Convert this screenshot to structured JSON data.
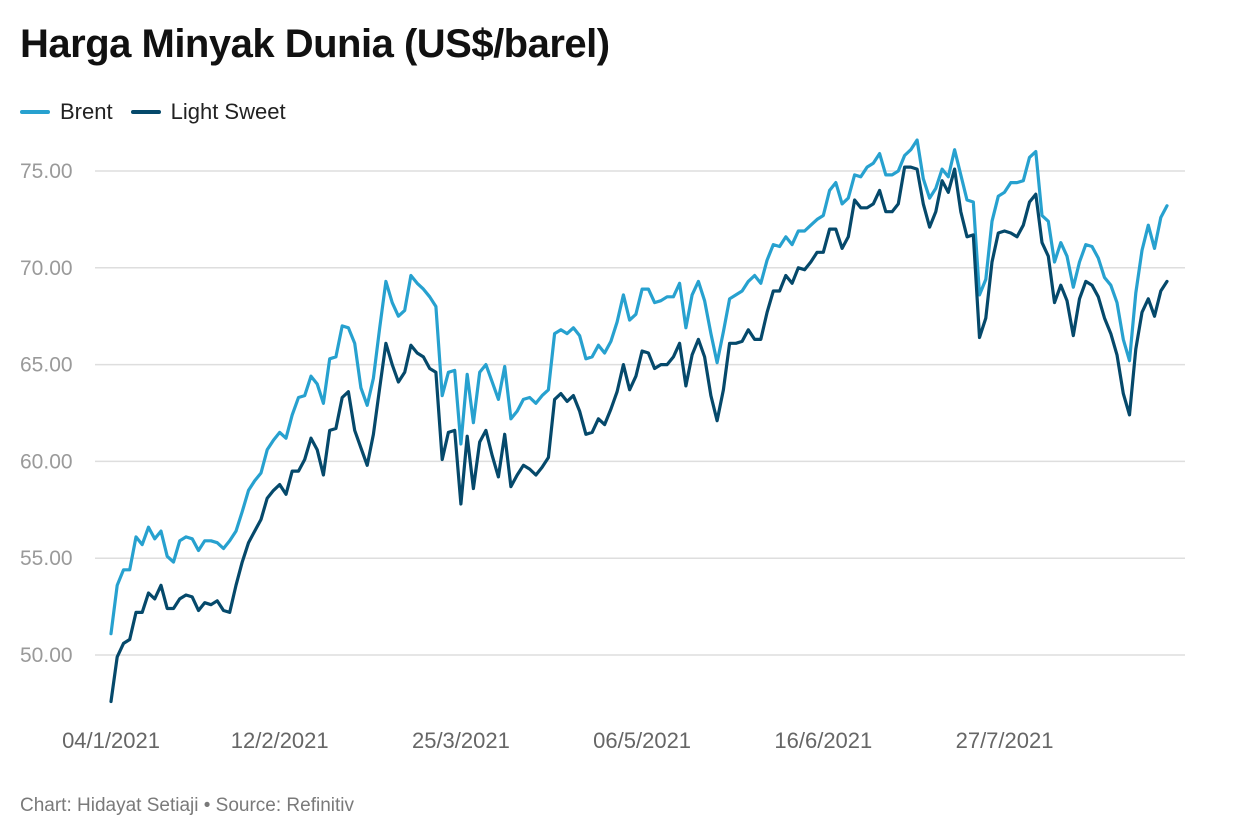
{
  "title": "Harga Minyak Dunia (US$/barel)",
  "footer": "Chart: Hidayat Setiaji • Source: Refinitiv",
  "colors": {
    "brent": "#27a1cf",
    "light_sweet": "#05496b",
    "grid": "#dedede",
    "tick_text": "#9a9a9a",
    "axis_text": "#666666"
  },
  "chart_data": {
    "type": "line",
    "title": "Harga Minyak Dunia (US$/barel)",
    "xlabel": "",
    "ylabel": "",
    "ylim": [
      47,
      78
    ],
    "grid": true,
    "legend": "top-left",
    "y_ticks": [
      "50.00",
      "55.00",
      "60.00",
      "65.00",
      "70.00",
      "75.00"
    ],
    "y_tick_values": [
      50,
      55,
      60,
      65,
      70,
      75
    ],
    "x_ticks": [
      "04/1/2021",
      "12/2/2021",
      "25/3/2021",
      "06/5/2021",
      "16/6/2021",
      "27/7/2021"
    ],
    "x_tick_index": [
      0,
      27,
      56,
      85,
      114,
      143
    ],
    "series": [
      {
        "name": "Brent",
        "color": "#27a1cf",
        "values": [
          51.1,
          53.6,
          54.4,
          54.4,
          56.1,
          55.7,
          56.6,
          56.0,
          56.4,
          55.1,
          54.8,
          55.9,
          56.1,
          56.0,
          55.4,
          55.9,
          55.9,
          55.8,
          55.5,
          55.9,
          56.4,
          57.4,
          58.5,
          59.0,
          59.4,
          60.6,
          61.1,
          61.5,
          61.2,
          62.4,
          63.3,
          63.4,
          64.4,
          64.0,
          63.0,
          65.3,
          65.4,
          67.0,
          66.9,
          66.1,
          63.8,
          62.9,
          64.3,
          66.9,
          69.3,
          68.2,
          67.5,
          67.8,
          69.6,
          69.2,
          68.9,
          68.5,
          68.0,
          63.4,
          64.6,
          64.7,
          60.9,
          64.5,
          62.0,
          64.6,
          65.0,
          64.1,
          63.2,
          64.9,
          62.2,
          62.6,
          63.2,
          63.3,
          63.0,
          63.4,
          63.7,
          66.6,
          66.8,
          66.6,
          66.9,
          66.5,
          65.3,
          65.4,
          66.0,
          65.6,
          66.2,
          67.2,
          68.6,
          67.3,
          67.6,
          68.9,
          68.9,
          68.2,
          68.3,
          68.5,
          68.5,
          69.2,
          66.9,
          68.6,
          69.3,
          68.3,
          66.6,
          65.1,
          66.7,
          68.4,
          68.6,
          68.8,
          69.3,
          69.6,
          69.2,
          70.4,
          71.2,
          71.1,
          71.6,
          71.2,
          71.9,
          71.9,
          72.2,
          72.5,
          72.7,
          74.0,
          74.4,
          73.3,
          73.6,
          74.8,
          74.7,
          75.2,
          75.4,
          75.9,
          74.8,
          74.8,
          75.0,
          75.8,
          76.1,
          76.6,
          74.6,
          73.6,
          74.1,
          75.1,
          74.7,
          76.1,
          74.8,
          73.5,
          73.4,
          68.6,
          69.4,
          72.4,
          73.7,
          73.9,
          74.4,
          74.4,
          74.5,
          75.7,
          76.0,
          72.7,
          72.4,
          70.3,
          71.3,
          70.6,
          69.0,
          70.3,
          71.2,
          71.1,
          70.5,
          69.5,
          69.1,
          68.2,
          66.3,
          65.2,
          68.7,
          70.9,
          72.2,
          71.0,
          72.6,
          73.2
        ]
      },
      {
        "name": "Light Sweet",
        "color": "#05496b",
        "values": [
          47.6,
          49.9,
          50.6,
          50.8,
          52.2,
          52.2,
          53.2,
          52.9,
          53.6,
          52.4,
          52.4,
          52.9,
          53.1,
          53.0,
          52.3,
          52.7,
          52.6,
          52.8,
          52.3,
          52.2,
          53.6,
          54.8,
          55.8,
          56.4,
          57.0,
          58.1,
          58.5,
          58.8,
          58.3,
          59.5,
          59.5,
          60.1,
          61.2,
          60.6,
          59.3,
          61.6,
          61.7,
          63.3,
          63.6,
          61.6,
          60.7,
          59.8,
          61.4,
          63.8,
          66.1,
          65.0,
          64.1,
          64.6,
          66.0,
          65.6,
          65.4,
          64.8,
          64.6,
          60.1,
          61.5,
          61.6,
          57.8,
          61.3,
          58.6,
          61.0,
          61.6,
          60.3,
          59.2,
          61.4,
          58.7,
          59.3,
          59.8,
          59.6,
          59.3,
          59.7,
          60.2,
          63.2,
          63.5,
          63.1,
          63.4,
          62.6,
          61.4,
          61.5,
          62.2,
          61.9,
          62.7,
          63.6,
          65.0,
          63.7,
          64.4,
          65.7,
          65.6,
          64.8,
          65.0,
          65.0,
          65.4,
          66.1,
          63.9,
          65.5,
          66.3,
          65.4,
          63.4,
          62.1,
          63.7,
          66.1,
          66.1,
          66.2,
          66.8,
          66.3,
          66.3,
          67.7,
          68.8,
          68.8,
          69.6,
          69.2,
          70.0,
          69.9,
          70.3,
          70.8,
          70.8,
          72.0,
          72.0,
          71.0,
          71.6,
          73.5,
          73.1,
          73.1,
          73.3,
          74.0,
          72.9,
          72.9,
          73.3,
          75.2,
          75.2,
          75.1,
          73.3,
          72.1,
          72.9,
          74.5,
          73.9,
          75.1,
          72.9,
          71.6,
          71.7,
          66.4,
          67.4,
          70.3,
          71.8,
          71.9,
          71.8,
          71.6,
          72.2,
          73.4,
          73.8,
          71.3,
          70.6,
          68.2,
          69.1,
          68.3,
          66.5,
          68.4,
          69.3,
          69.1,
          68.5,
          67.4,
          66.6,
          65.5,
          63.5,
          62.4,
          65.8,
          67.7,
          68.4,
          67.5,
          68.8,
          69.3
        ]
      }
    ]
  }
}
